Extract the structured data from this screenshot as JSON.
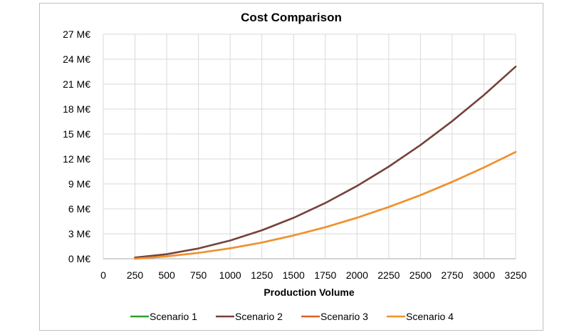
{
  "chart_data": {
    "type": "line",
    "title": "Cost Comparison",
    "xlabel": "Production Volume",
    "ylabel": "",
    "x": [
      250,
      500,
      750,
      1000,
      1250,
      1500,
      1750,
      2000,
      2250,
      2500,
      2750,
      3000,
      3250
    ],
    "xlim": [
      0,
      3250
    ],
    "ylim": [
      0,
      27
    ],
    "x_ticks": [
      "0",
      "250",
      "500",
      "750",
      "1000",
      "1250",
      "1500",
      "1750",
      "2000",
      "2250",
      "2500",
      "2750",
      "3000",
      "3250"
    ],
    "y_ticks": [
      "0 M€",
      "3 M€",
      "6 M€",
      "9 M€",
      "12 M€",
      "15 M€",
      "18 M€",
      "21 M€",
      "24 M€",
      "27 M€"
    ],
    "grid": true,
    "legend_position": "bottom",
    "series": [
      {
        "name": "Scenario 1",
        "color": "#2ca02c",
        "values": [
          0.14,
          0.55,
          1.23,
          2.19,
          3.42,
          4.92,
          6.7,
          8.75,
          11.07,
          13.67,
          16.54,
          19.69,
          23.1
        ]
      },
      {
        "name": "Scenario 2",
        "color": "#7b3f3f",
        "values": [
          0.14,
          0.55,
          1.23,
          2.19,
          3.42,
          4.92,
          6.7,
          8.75,
          11.07,
          13.67,
          16.54,
          19.69,
          23.1
        ]
      },
      {
        "name": "Scenario 3",
        "color": "#e0602a",
        "values": [
          0.0,
          0.29,
          0.7,
          1.25,
          1.95,
          2.8,
          3.79,
          4.93,
          6.22,
          7.65,
          9.24,
          10.97,
          12.84
        ]
      },
      {
        "name": "Scenario 4",
        "color": "#f0922a",
        "values": [
          0.0,
          0.29,
          0.7,
          1.25,
          1.95,
          2.8,
          3.79,
          4.93,
          6.22,
          7.65,
          9.24,
          10.97,
          12.84
        ]
      }
    ]
  }
}
